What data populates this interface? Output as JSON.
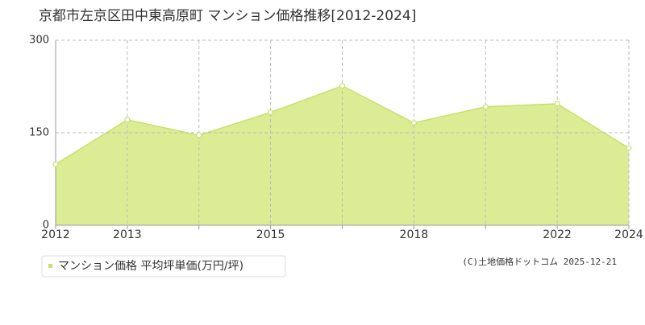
{
  "chart_data": {
    "type": "area",
    "title": "京都市左京区田中東高原町 マンション価格推移[2012-2024]",
    "categories": [
      "2012",
      "2013",
      null,
      "2015",
      null,
      "2018",
      null,
      "2022",
      "2024"
    ],
    "series": [
      {
        "name": "マンション価格 平均坪単価(万円/坪)",
        "color": "#c8e06e",
        "fill": "#dcec94",
        "values": [
          99,
          171,
          146,
          183,
          226,
          166,
          192,
          197,
          125
        ]
      }
    ],
    "ylim": [
      0,
      300
    ],
    "yticks": [
      0,
      150,
      300
    ],
    "grid": true,
    "legend": "bottom-left",
    "source": "(C)土地価格ドットコム 2025-12-21"
  }
}
